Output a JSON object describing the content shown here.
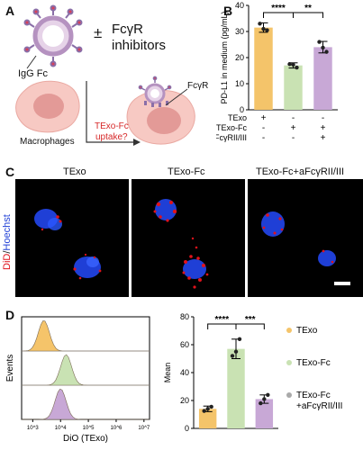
{
  "panelA": {
    "letter": "A",
    "igg_fc_label": "IgG Fc",
    "pm_symbol": "±",
    "inhibitor_line1": "FcγR",
    "inhibitor_line2": "inhibitors",
    "macrophages_label": "Macrophages",
    "question_line1": "TExo-Fc",
    "question_line2": "uptake?",
    "fcgr_label": "FcγR",
    "colors": {
      "cell": "#f7c7c2",
      "nucleus": "#e89a96",
      "exosome_ring": "#c8a6c9",
      "spike": "#8a6fa8",
      "question_text": "#d62728"
    }
  },
  "chart_data": [
    {
      "type": "bar",
      "panel": "B",
      "ylabel": "PD-L1 in medium (pg/mL)",
      "ylim": [
        0,
        40
      ],
      "yticks": [
        0,
        10,
        20,
        30,
        40
      ],
      "categories": [
        "TExo",
        "TExo-Fc",
        "TExo-Fc+aFcγRII/III"
      ],
      "values": [
        31.5,
        17,
        24
      ],
      "errors": [
        1.8,
        1,
        2.2
      ],
      "points": [
        [
          33,
          30.5,
          31
        ],
        [
          17.5,
          16.2,
          17.3
        ],
        [
          26,
          22.2,
          23.8
        ]
      ],
      "colors": [
        "#f4c46a",
        "#c9e2b3",
        "#c8a8d6"
      ],
      "significance": [
        {
          "from": 0,
          "to": 1,
          "label": "****"
        },
        {
          "from": 1,
          "to": 2,
          "label": "**"
        }
      ],
      "condition_table": {
        "rows": [
          {
            "label": "TExo",
            "marks": [
              "+",
              "-",
              "-"
            ]
          },
          {
            "label": "TExo-Fc",
            "marks": [
              "-",
              "+",
              "+"
            ]
          },
          {
            "label": "aFcγRII/III",
            "marks": [
              "-",
              "-",
              "+"
            ]
          }
        ]
      }
    },
    {
      "type": "bar",
      "panel": "D",
      "ylabel": "Mean",
      "ylim": [
        0,
        80
      ],
      "yticks": [
        0,
        20,
        40,
        60,
        80
      ],
      "categories": [
        "TExo",
        "TExo-Fc",
        "TExo-Fc +aFcγRII/III"
      ],
      "values": [
        14,
        57,
        21
      ],
      "errors": [
        2,
        7,
        3
      ],
      "points": [
        [
          12.5,
          15.5,
          14
        ],
        [
          52,
          64,
          55
        ],
        [
          18,
          24,
          21
        ]
      ],
      "colors": [
        "#f4c46a",
        "#c9e2b3",
        "#c8a8d6"
      ],
      "significance": [
        {
          "from": 0,
          "to": 1,
          "label": "****"
        },
        {
          "from": 1,
          "to": 2,
          "label": "***"
        }
      ],
      "legend": [
        {
          "label": "TExo",
          "color": "#f4c46a"
        },
        {
          "label": "TExo-Fc",
          "color": "#c9e2b3"
        },
        {
          "label_line1": "TExo-Fc",
          "label_line2": "+aFcγRII/III",
          "color": "#c8a8d6"
        }
      ]
    },
    {
      "type": "area",
      "panel": "D-histogram",
      "xlabel": "DiO (TExo)",
      "ylabel": "Events",
      "xscale": "log",
      "xticks": [
        "10^3",
        "10^4",
        "10^5",
        "10^6",
        "10^7"
      ],
      "series": [
        {
          "peak_log10": 3.4,
          "fill": "#f5c46a"
        },
        {
          "peak_log10": 4.2,
          "fill": "#c9e2b3"
        },
        {
          "peak_log10": 4.0,
          "fill": "#c8a8d6"
        }
      ]
    }
  ],
  "panelB": {
    "letter": "B"
  },
  "panelC": {
    "letter": "C",
    "side_label_part1": "DiD",
    "side_label_sep": "/",
    "side_label_part2": "Hoechst",
    "titles": [
      "TExo",
      "TExo-Fc",
      "TExo-Fc+aFcγRII/III"
    ],
    "colors": {
      "did": "#e0121b",
      "hoechst": "#1f3fd6"
    }
  },
  "panelD": {
    "letter": "D"
  }
}
